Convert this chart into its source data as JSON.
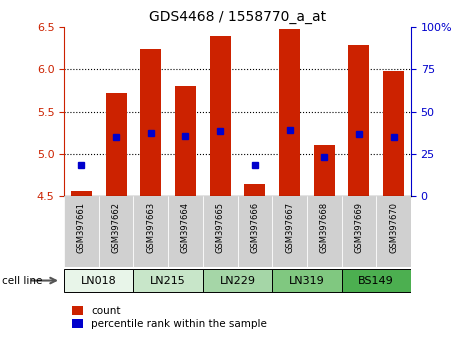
{
  "title": "GDS4468 / 1558770_a_at",
  "samples": [
    "GSM397661",
    "GSM397662",
    "GSM397663",
    "GSM397664",
    "GSM397665",
    "GSM397666",
    "GSM397667",
    "GSM397668",
    "GSM397669",
    "GSM397670"
  ],
  "bar_base": 4.5,
  "bar_tops": [
    4.56,
    5.72,
    6.24,
    5.8,
    6.39,
    4.65,
    6.47,
    5.1,
    6.28,
    5.98
  ],
  "blue_dots_y": [
    4.87,
    5.2,
    5.25,
    5.21,
    5.27,
    4.87,
    5.28,
    4.96,
    5.24,
    5.2
  ],
  "ylim_left": [
    4.5,
    6.5
  ],
  "ylim_right": [
    0,
    100
  ],
  "yticks_left": [
    4.5,
    5.0,
    5.5,
    6.0,
    6.5
  ],
  "yticks_right": [
    0,
    25,
    50,
    75,
    100
  ],
  "cell_lines": [
    {
      "name": "LN018",
      "indices": [
        0,
        1
      ],
      "color": "#e8f5e9"
    },
    {
      "name": "LN215",
      "indices": [
        2,
        3
      ],
      "color": "#c8e6c9"
    },
    {
      "name": "LN229",
      "indices": [
        4,
        5
      ],
      "color": "#a5d6a7"
    },
    {
      "name": "LN319",
      "indices": [
        6,
        7
      ],
      "color": "#80c880"
    },
    {
      "name": "BS149",
      "indices": [
        8,
        9
      ],
      "color": "#4caf50"
    }
  ],
  "bar_color": "#cc2200",
  "dot_color": "#0000cc",
  "left_tick_color": "#cc2200",
  "right_tick_color": "#0000cc",
  "label_count": "count",
  "label_pct": "percentile rank within the sample",
  "sample_label_bg": "#d0d0d0",
  "cell_line_label": "cell line"
}
